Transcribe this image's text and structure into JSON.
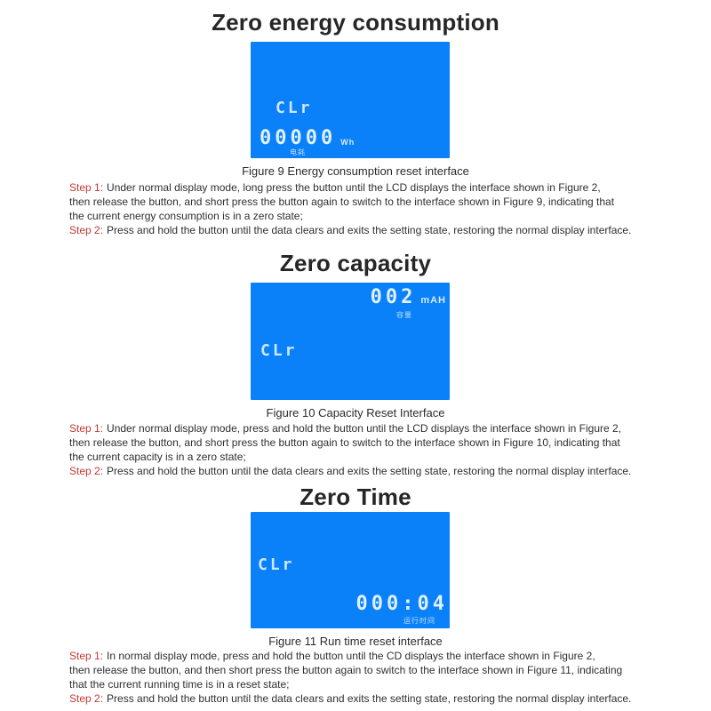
{
  "colors": {
    "lcd_blue": "#0a81f8",
    "lcd_text": "#dff0ff",
    "step_label_red": "#c23a33",
    "body_text": "#2f2f2f"
  },
  "sections": [
    {
      "title": "Zero energy consumption",
      "figure_caption": "Figure 9 Energy consumption reset interface",
      "lcd": {
        "clr": "CLr",
        "value": "00000",
        "unit": "Wh",
        "value_label_cn": "电耗"
      },
      "steps": [
        {
          "label": "Step 1:",
          "lines": [
            "Under normal display mode, long press the button until the LCD displays the interface shown in Figure 2,",
            "then release the button, and short press the button again to switch to the interface shown in Figure 9, indicating that",
            "the current energy consumption is in a zero state;"
          ]
        },
        {
          "label": "Step 2:",
          "lines": [
            "Press and hold the button until the data clears and exits the setting state, restoring the normal display interface."
          ]
        }
      ]
    },
    {
      "title": "Zero capacity",
      "figure_caption": "Figure 10 Capacity Reset Interface",
      "lcd": {
        "clr": "CLr",
        "value": "002",
        "unit": "mAH",
        "value_label_cn": "容量"
      },
      "steps": [
        {
          "label": "Step 1:",
          "lines": [
            "Under normal display mode, press and hold the button until the LCD displays the interface shown in Figure 2,",
            "then release the button, and short press the button again to switch to the interface shown in Figure 10, indicating that",
            "the current capacity is in a zero state;"
          ]
        },
        {
          "label": "Step 2:",
          "lines": [
            "Press and hold the button until the data clears and exits the setting state, restoring the normal display interface."
          ]
        }
      ]
    },
    {
      "title": "Zero Time",
      "figure_caption": "Figure 11 Run time reset interface",
      "lcd": {
        "clr": "CLr",
        "value": "000:04",
        "value_label_cn": "运行时间"
      },
      "steps": [
        {
          "label": "Step 1:",
          "lines": [
            "In normal display mode, press and hold the button until the CD displays the interface shown in Figure 2,",
            "then release the button, and then short press the button again to switch to the interface shown in Figure 11, indicating",
            "that the current running time is in a reset state;"
          ]
        },
        {
          "label": "Step 2:",
          "lines": [
            "Press and hold the button until the data clears and exits the setting state, restoring the normal display interface."
          ]
        }
      ]
    }
  ]
}
